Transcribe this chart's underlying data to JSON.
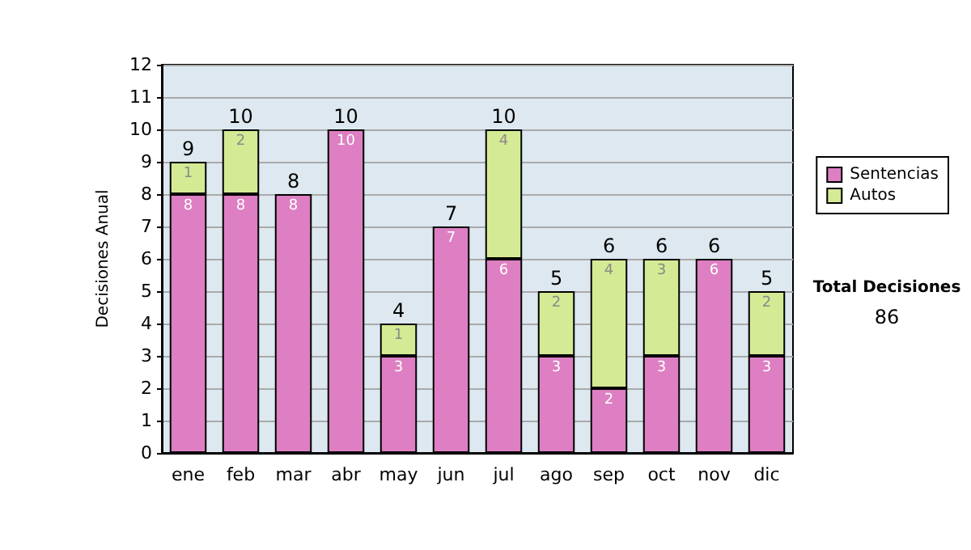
{
  "chart_data": {
    "type": "bar",
    "stacked": true,
    "ylabel": "Decisiones Anual",
    "categories": [
      "ene",
      "feb",
      "mar",
      "abr",
      "may",
      "jun",
      "jul",
      "ago",
      "sep",
      "oct",
      "nov",
      "dic"
    ],
    "series": [
      {
        "name": "Sentencias",
        "color": "#dd7fc2",
        "values": [
          8,
          8,
          8,
          10,
          3,
          7,
          6,
          3,
          2,
          3,
          6,
          3
        ],
        "value_labels": [
          "8",
          "8",
          "8",
          "10",
          "3",
          "7",
          "6",
          "3",
          "2",
          "3",
          "6",
          "3"
        ]
      },
      {
        "name": "Autos",
        "color": "#d5ea94",
        "values": [
          1,
          2,
          0,
          0,
          1,
          0,
          4,
          2,
          4,
          3,
          0,
          2
        ],
        "value_labels": [
          "1",
          "2",
          null,
          null,
          "1",
          null,
          "4",
          "2",
          "4",
          "3",
          null,
          "2"
        ]
      }
    ],
    "totals": [
      "9",
      "10",
      "8",
      "10",
      "4",
      "7",
      "10",
      "5",
      "6",
      "6",
      "6",
      "5"
    ],
    "ylim": [
      0,
      12
    ],
    "yticks": [
      0,
      1,
      2,
      3,
      4,
      5,
      6,
      7,
      8,
      9,
      10,
      11,
      12
    ],
    "grid": "y",
    "legend": "right",
    "annotations": [
      "Total Decisiones",
      "86"
    ]
  }
}
